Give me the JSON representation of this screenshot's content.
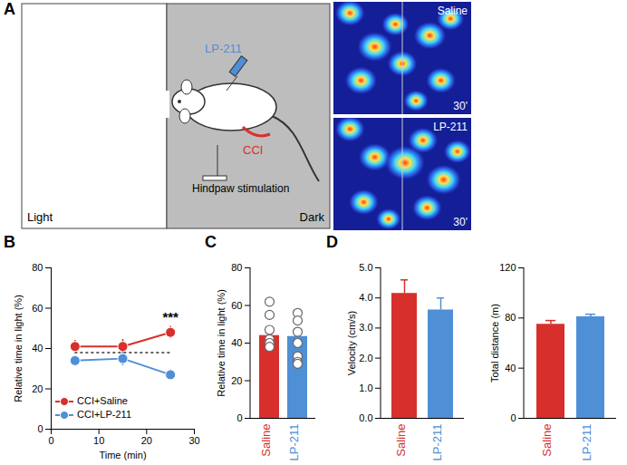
{
  "diagram": {
    "panel": "A",
    "light_label": "Light",
    "dark_label": "Dark",
    "drug_label": "LP-211",
    "injury_label": "CCI",
    "stimulus_label": "Hindpaw stimulation",
    "heatmaps": [
      {
        "label": "Saline",
        "time": "30'"
      },
      {
        "label": "LP-211",
        "time": "30'"
      }
    ]
  },
  "chart_data": [
    {
      "panel": "B",
      "type": "line",
      "x_label": "Time (min)",
      "y_label": "Relative time in light (%)",
      "xlim": [
        0,
        30
      ],
      "xticks": [
        0,
        10,
        20,
        30
      ],
      "ylim": [
        0,
        80
      ],
      "yticks": [
        0,
        20,
        40,
        60,
        80
      ],
      "x": [
        5,
        15,
        25
      ],
      "series": [
        {
          "name": "CCI+Saline",
          "color": "#d7302c",
          "marker": "circle",
          "values": [
            41,
            41,
            48
          ],
          "error": [
            3,
            3.5,
            3
          ]
        },
        {
          "name": "CCI+LP-211",
          "color": "#4f8fd6",
          "marker": "circle",
          "values": [
            34,
            35,
            27
          ],
          "error": [
            2.5,
            3.5,
            2.5
          ]
        }
      ],
      "reference_value": 38,
      "annotations": [
        {
          "text": "***",
          "x": 25
        }
      ],
      "legend": "lower left"
    },
    {
      "panel": "C",
      "type": "bar",
      "y_label": "Relative time in light (%)",
      "categories": [
        "Saline",
        "LP-211"
      ],
      "values": [
        44,
        43.5
      ],
      "colors": [
        "#d7302c",
        "#4f8fd6"
      ],
      "points": [
        [
          62,
          55,
          47,
          42,
          40,
          40,
          38
        ],
        [
          56,
          52,
          46,
          40,
          33,
          30,
          29
        ]
      ],
      "ylim": [
        0,
        80
      ],
      "yticks": [
        0,
        20,
        40,
        60,
        80
      ]
    },
    {
      "panel": "D",
      "type": "bar",
      "y_label": "Velocity (cm/s)",
      "categories": [
        "Saline",
        "LP-211"
      ],
      "values": [
        4.15,
        3.6
      ],
      "error": [
        0.45,
        0.4
      ],
      "colors": [
        "#d7302c",
        "#4f8fd6"
      ],
      "ylim": [
        0,
        5
      ],
      "yticks": [
        0,
        1,
        2,
        3,
        4,
        5
      ]
    },
    {
      "type": "bar",
      "y_label": "Total distance (m)",
      "categories": [
        "Saline",
        "LP-211"
      ],
      "values": [
        75,
        81
      ],
      "error": [
        3,
        2
      ],
      "colors": [
        "#d7302c",
        "#4f8fd6"
      ],
      "ylim": [
        0,
        120
      ],
      "yticks": [
        0,
        40,
        80,
        120
      ]
    }
  ]
}
